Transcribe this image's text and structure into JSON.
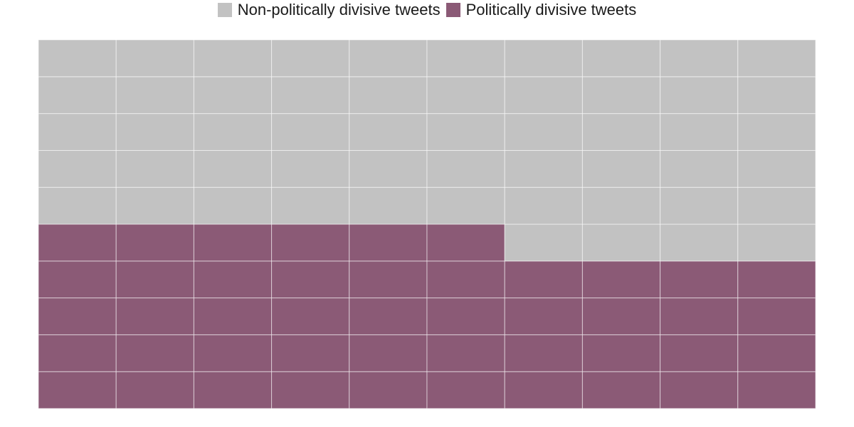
{
  "chart_data": {
    "type": "waffle",
    "rows": 10,
    "columns": 10,
    "fill_order": "bottom-up, left-to-right by row",
    "legend_position": "top",
    "grid": false,
    "series": [
      {
        "name": "Politically divisive tweets",
        "value": 46,
        "color": "#8b5a76"
      },
      {
        "name": "Non-politically divisive tweets",
        "value": 54,
        "color": "#c2c2c2"
      }
    ]
  },
  "legend": {
    "items": [
      {
        "label": "Non-politically divisive tweets",
        "color": "#c2c2c2"
      },
      {
        "label": "Politically divisive tweets",
        "color": "#8b5a76"
      }
    ]
  }
}
